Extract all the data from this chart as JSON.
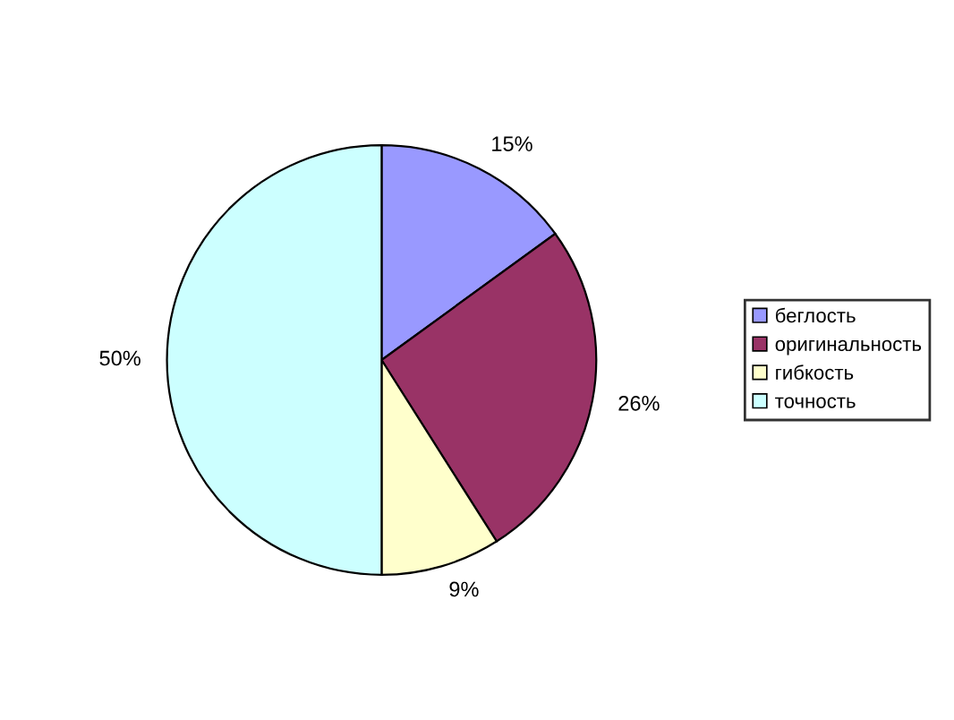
{
  "chart_data": {
    "type": "pie",
    "categories": [
      "беглость",
      "оригинальность",
      "гибкость",
      "точность"
    ],
    "values": [
      15,
      26,
      9,
      50
    ],
    "value_labels": [
      "15%",
      "26%",
      "9%",
      "50%"
    ],
    "colors": [
      "#9999ff",
      "#993366",
      "#ffffcc",
      "#ccffff"
    ],
    "legend": "right"
  }
}
